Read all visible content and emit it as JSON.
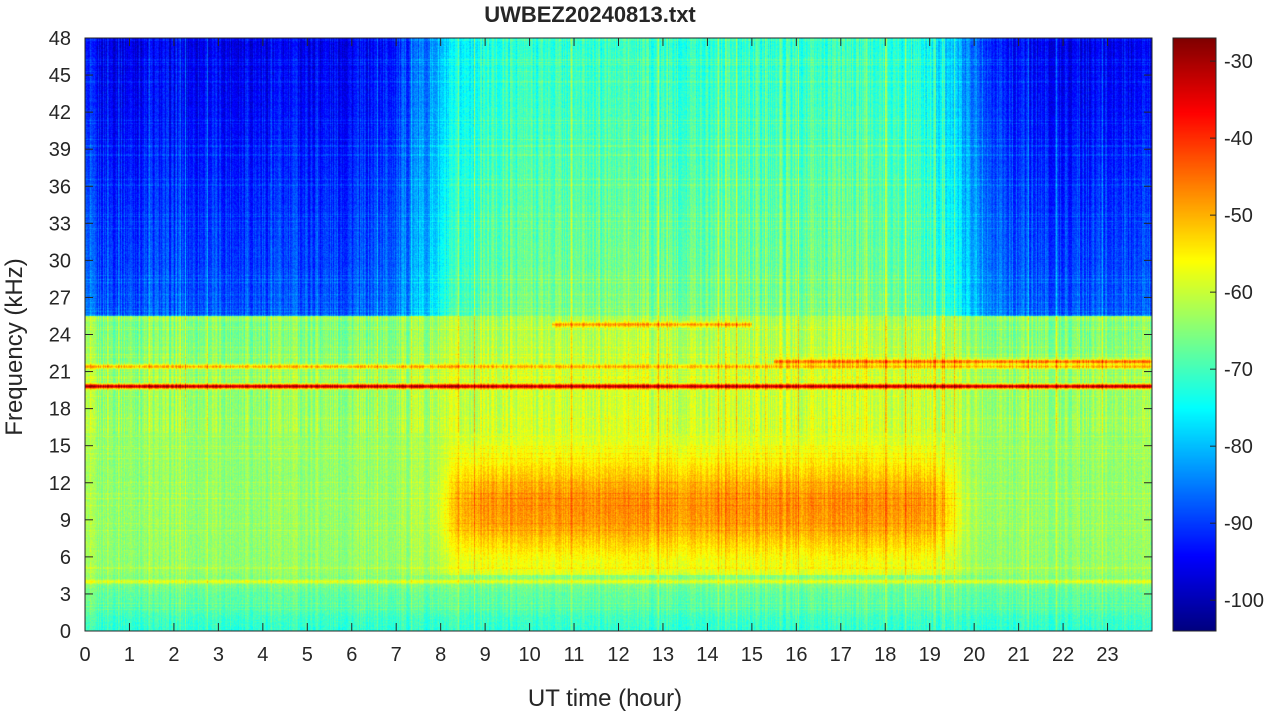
{
  "chart_data": {
    "type": "heatmap",
    "title": "UWBEZ20240813.txt",
    "xlabel": "UT time (hour)",
    "ylabel": "Frequency (kHz)",
    "xlim": [
      0,
      24
    ],
    "ylim": [
      0,
      48
    ],
    "x_ticks": [
      "0",
      "1",
      "2",
      "3",
      "4",
      "5",
      "6",
      "7",
      "8",
      "9",
      "10",
      "11",
      "12",
      "13",
      "14",
      "15",
      "16",
      "17",
      "18",
      "19",
      "20",
      "21",
      "22",
      "23"
    ],
    "y_ticks": [
      "0",
      "3",
      "6",
      "9",
      "12",
      "15",
      "18",
      "21",
      "24",
      "27",
      "30",
      "33",
      "36",
      "39",
      "42",
      "45",
      "48"
    ],
    "grid": false,
    "colormap": "jet",
    "colorbar": {
      "range": [
        -104,
        -27
      ],
      "ticks": [
        "-30",
        "-40",
        "-50",
        "-60",
        "-70",
        "-80",
        "-90",
        "-100"
      ]
    },
    "features": {
      "background_high_freq_night_dB": -88,
      "background_high_freq_day_dB": -66,
      "background_low_freq_dB": -62,
      "daytime_broadband_emission": {
        "hours": [
          8.2,
          19.5
        ],
        "freq_khz": [
          4.5,
          16
        ],
        "peak_dB": -50
      },
      "narrowband_lines": [
        {
          "freq_khz": 19.8,
          "level_dB": -30,
          "hours": [
            0,
            24
          ]
        },
        {
          "freq_khz": 21.4,
          "level_dB": -50,
          "hours": [
            0,
            24
          ]
        },
        {
          "freq_khz": 21.8,
          "level_dB": -44,
          "hours": [
            15.5,
            24
          ]
        },
        {
          "freq_khz": 24.8,
          "level_dB": -48,
          "hours": [
            10.5,
            15
          ]
        },
        {
          "freq_khz": 25.3,
          "level_dB": -62,
          "hours": [
            0,
            24
          ]
        },
        {
          "freq_khz": 4.0,
          "level_dB": -58,
          "hours": [
            0,
            24
          ]
        }
      ]
    }
  }
}
